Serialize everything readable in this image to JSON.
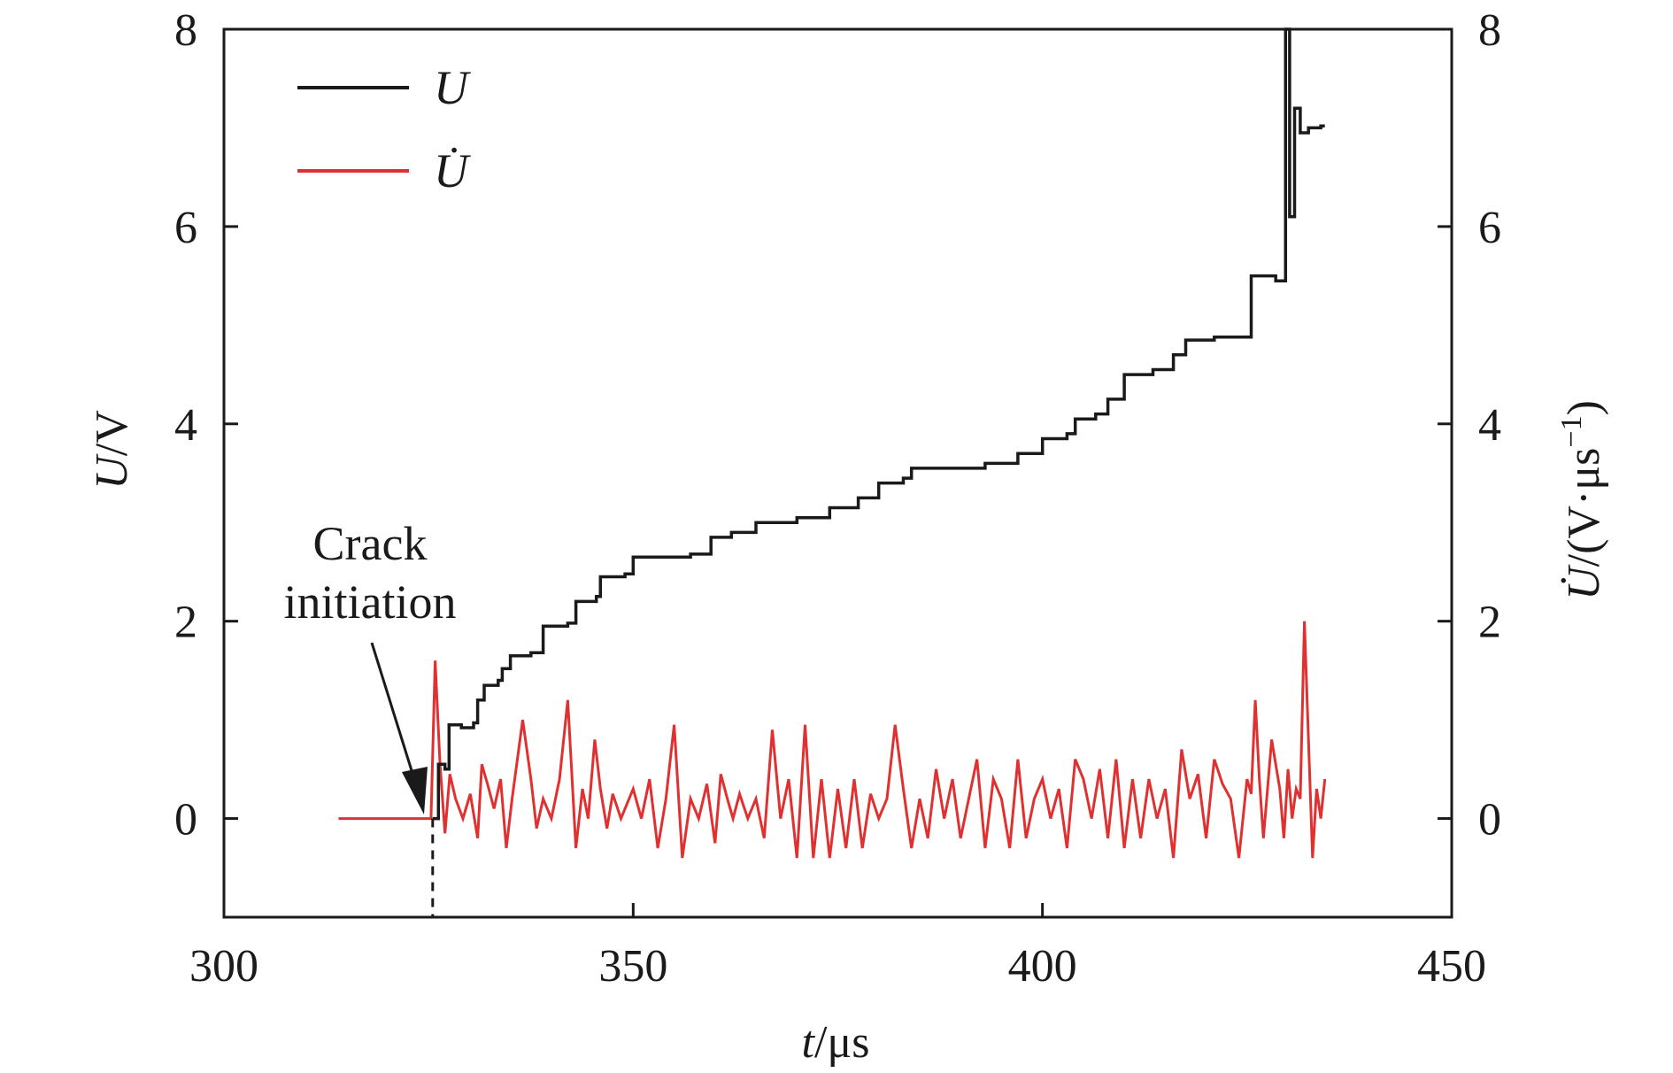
{
  "chart_data": {
    "type": "line",
    "xlabel": {
      "var": "t",
      "unit": "/μs"
    },
    "ylabel_left": {
      "var": "U",
      "unit": "/V"
    },
    "ylabel_right": {
      "var": "U̇",
      "unit": "/(V·μs",
      "exp": "−1",
      "close": ")"
    },
    "xlim": [
      300,
      450
    ],
    "ylim": [
      -1,
      8
    ],
    "x_ticks": [
      300,
      350,
      400,
      450
    ],
    "y_ticks": [
      0,
      2,
      4,
      6,
      8
    ],
    "legend": {
      "position": "top-left"
    },
    "annotation": {
      "lines": [
        "Crack",
        "initiation"
      ],
      "x": 325.5,
      "y": 0
    },
    "series": [
      {
        "name": "U",
        "color": "#1a1a1a",
        "step_points": [
          [
            325.5,
            0.0
          ],
          [
            326.2,
            0.55
          ],
          [
            327.0,
            0.5
          ],
          [
            327.5,
            0.95
          ],
          [
            329.0,
            0.92
          ],
          [
            330.5,
            0.97
          ],
          [
            331.0,
            1.2
          ],
          [
            331.8,
            1.35
          ],
          [
            333.5,
            1.4
          ],
          [
            334.0,
            1.52
          ],
          [
            335.0,
            1.65
          ],
          [
            337.5,
            1.68
          ],
          [
            339.0,
            1.95
          ],
          [
            342.0,
            1.98
          ],
          [
            343.0,
            2.2
          ],
          [
            345.5,
            2.25
          ],
          [
            346.0,
            2.45
          ],
          [
            349.0,
            2.48
          ],
          [
            350.0,
            2.65
          ],
          [
            357.0,
            2.68
          ],
          [
            359.5,
            2.85
          ],
          [
            362.0,
            2.9
          ],
          [
            365.0,
            3.0
          ],
          [
            370.0,
            3.05
          ],
          [
            374.0,
            3.15
          ],
          [
            377.5,
            3.25
          ],
          [
            380.0,
            3.4
          ],
          [
            383.0,
            3.45
          ],
          [
            384.0,
            3.55
          ],
          [
            390.0,
            3.55
          ],
          [
            393.0,
            3.6
          ],
          [
            397.0,
            3.7
          ],
          [
            400.0,
            3.85
          ],
          [
            403.0,
            3.9
          ],
          [
            404.0,
            4.05
          ],
          [
            406.5,
            4.1
          ],
          [
            408.0,
            4.25
          ],
          [
            410.0,
            4.5
          ],
          [
            413.5,
            4.55
          ],
          [
            416.0,
            4.7
          ],
          [
            417.5,
            4.85
          ],
          [
            421.0,
            4.88
          ],
          [
            425.5,
            5.5
          ],
          [
            428.5,
            5.45
          ],
          [
            429.7,
            8.0
          ],
          [
            430.2,
            6.1
          ],
          [
            430.8,
            7.2
          ],
          [
            431.5,
            6.95
          ],
          [
            432.5,
            7.0
          ],
          [
            434.0,
            7.02
          ],
          [
            434.5,
            7.02
          ]
        ]
      },
      {
        "name": "U̇",
        "color": "#e03030",
        "x": [
          314,
          325.3,
          325.8,
          326.4,
          327.0,
          327.6,
          328.3,
          329.2,
          330.1,
          331.0,
          331.5,
          332.2,
          333.0,
          333.8,
          334.5,
          335.2,
          336.5,
          337.5,
          338.2,
          339.0,
          340.0,
          341.0,
          342.0,
          343.0,
          343.8,
          344.5,
          345.3,
          346.0,
          346.8,
          347.5,
          348.5,
          350.0,
          351.0,
          352.0,
          353.0,
          354.0,
          355.0,
          356.0,
          357.0,
          358.0,
          359.0,
          360.0,
          360.7,
          361.5,
          362.2,
          363.0,
          364.0,
          365.0,
          366.0,
          367.0,
          368.0,
          369.0,
          370.0,
          371.0,
          372.0,
          373.0,
          374.0,
          375.0,
          376.0,
          377.0,
          378.0,
          379.0,
          380.0,
          381.0,
          382.0,
          383.0,
          384.0,
          385.0,
          386.0,
          387.0,
          388.0,
          389.0,
          390.0,
          391.0,
          392.0,
          393.0,
          394.0,
          395.0,
          396.0,
          397.0,
          398.0,
          399.0,
          400.0,
          401.0,
          402.0,
          403.0,
          404.0,
          405.0,
          406.0,
          407.0,
          408.0,
          409.0,
          410.0,
          411.0,
          412.0,
          413.0,
          414.0,
          415.0,
          416.0,
          417.0,
          418.0,
          419.0,
          420.0,
          421.0,
          422.0,
          423.0,
          424.0,
          425.0,
          425.5,
          426.0,
          426.5,
          427.0,
          428.0,
          429.0,
          429.5,
          430.0,
          430.5,
          431.0,
          431.5,
          432.0,
          432.5,
          433.0,
          433.5,
          434.0,
          434.5
        ],
        "values": [
          0,
          0,
          1.6,
          0.55,
          -0.15,
          0.45,
          0.2,
          0,
          0.25,
          -0.2,
          0.55,
          0.35,
          0.1,
          0.4,
          -0.3,
          0.2,
          1.0,
          0.4,
          -0.1,
          0.2,
          0,
          0.4,
          1.2,
          -0.3,
          0.3,
          0,
          0.8,
          0.3,
          -0.1,
          0.25,
          0,
          0.3,
          0,
          0.4,
          -0.3,
          0.2,
          0.95,
          -0.4,
          0.2,
          0,
          0.35,
          -0.25,
          0.45,
          0.2,
          0,
          0.25,
          0,
          0.2,
          -0.2,
          0.9,
          0,
          0.4,
          -0.4,
          0.95,
          -0.4,
          0.4,
          -0.4,
          0.3,
          -0.3,
          0.4,
          -0.3,
          0.25,
          0,
          0.2,
          0.95,
          0.3,
          -0.3,
          0.2,
          -0.2,
          0.5,
          0,
          0.4,
          -0.2,
          0.2,
          0.6,
          -0.3,
          0.4,
          0.2,
          -0.3,
          0.6,
          -0.2,
          0.2,
          0.4,
          0,
          0.3,
          -0.3,
          0.6,
          0.4,
          0,
          0.5,
          -0.2,
          0.6,
          -0.3,
          0.4,
          -0.2,
          0.4,
          0,
          0.3,
          -0.4,
          0.7,
          0.2,
          0.45,
          -0.2,
          0.6,
          0.35,
          0.2,
          -0.4,
          0.4,
          0.25,
          1.2,
          0.4,
          -0.2,
          0.8,
          0.3,
          -0.2,
          0.5,
          0,
          0.3,
          0.2,
          2.0,
          0.8,
          -0.4,
          0.3,
          0,
          0.4
        ]
      }
    ]
  }
}
